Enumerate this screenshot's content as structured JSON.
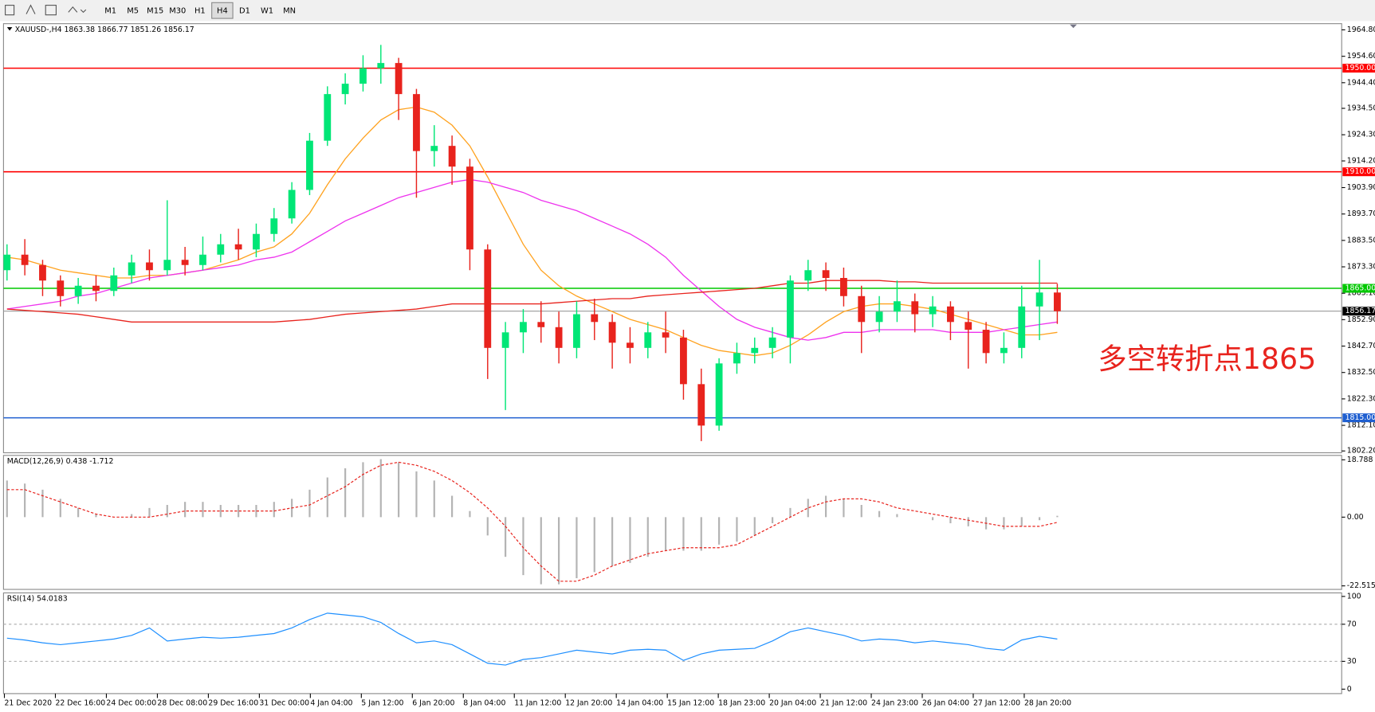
{
  "toolbar": {
    "timeframes": [
      "M1",
      "M5",
      "M15",
      "M30",
      "H1",
      "H4",
      "D1",
      "W1",
      "MN"
    ]
  },
  "chart_data": [
    {
      "type": "candlestick",
      "title": "XAUUSD-,H4 1863.38 1866.77 1851.26 1856.17",
      "up_color": "#00e676",
      "down_color": "#e8231d",
      "open": [
        1872,
        1878,
        1874,
        1868,
        1862,
        1866,
        1864,
        1870,
        1875,
        1872,
        1876,
        1874,
        1878,
        1882,
        1880,
        1886,
        1892,
        1903,
        1922,
        1940,
        1944,
        1950,
        1952,
        1940,
        1918,
        1920,
        1912,
        1880,
        1842,
        1848,
        1852,
        1850,
        1842,
        1855,
        1852,
        1844,
        1842,
        1848,
        1846,
        1828,
        1812,
        1836,
        1840,
        1842,
        1846,
        1868,
        1872,
        1869,
        1862,
        1852,
        1856,
        1860,
        1855,
        1858,
        1852,
        1849,
        1840,
        1842,
        1858,
        1863.38
      ],
      "high": [
        1882,
        1884,
        1876,
        1870,
        1869,
        1870,
        1873,
        1878,
        1880,
        1899,
        1881,
        1885,
        1886,
        1888,
        1890,
        1896,
        1906,
        1925,
        1943,
        1948,
        1955,
        1959,
        1954,
        1942,
        1928,
        1924,
        1915,
        1882,
        1852,
        1857,
        1860,
        1856,
        1860,
        1861,
        1855,
        1850,
        1852,
        1856,
        1849,
        1834,
        1838,
        1844,
        1846,
        1850,
        1870,
        1876,
        1875,
        1873,
        1866,
        1862,
        1868,
        1863,
        1862,
        1860,
        1856,
        1852,
        1848,
        1866,
        1876,
        1866.77
      ],
      "low": [
        1868,
        1870,
        1862,
        1858,
        1859,
        1860,
        1862,
        1867,
        1868,
        1870,
        1870,
        1872,
        1875,
        1876,
        1877,
        1883,
        1890,
        1901,
        1920,
        1936,
        1941,
        1944,
        1930,
        1900,
        1912,
        1905,
        1872,
        1830,
        1818,
        1840,
        1844,
        1836,
        1838,
        1845,
        1834,
        1836,
        1838,
        1840,
        1822,
        1806,
        1810,
        1832,
        1836,
        1838,
        1836,
        1864,
        1864,
        1858,
        1840,
        1848,
        1852,
        1848,
        1850,
        1845,
        1834,
        1836,
        1836,
        1838,
        1845,
        1851.26
      ],
      "close": [
        1878,
        1874,
        1868,
        1862,
        1866,
        1864,
        1870,
        1875,
        1872,
        1876,
        1874,
        1878,
        1882,
        1880,
        1886,
        1892,
        1903,
        1922,
        1940,
        1944,
        1950,
        1952,
        1940,
        1918,
        1920,
        1912,
        1880,
        1842,
        1848,
        1852,
        1850,
        1842,
        1855,
        1852,
        1844,
        1842,
        1848,
        1846,
        1828,
        1812,
        1836,
        1840,
        1842,
        1846,
        1868,
        1872,
        1869,
        1862,
        1852,
        1856,
        1860,
        1855,
        1858,
        1852,
        1849,
        1840,
        1842,
        1858,
        1863.38,
        1856.17
      ],
      "series": [
        {
          "color": "#ffa21f",
          "values": [
            1877,
            1876,
            1874,
            1872,
            1871,
            1870,
            1869,
            1869,
            1870,
            1870,
            1871,
            1872,
            1874,
            1876,
            1879,
            1881,
            1886,
            1894,
            1905,
            1915,
            1923,
            1930,
            1934,
            1935,
            1933,
            1928,
            1920,
            1908,
            1895,
            1882,
            1872,
            1866,
            1862,
            1859,
            1856,
            1853,
            1851,
            1849,
            1846,
            1843,
            1841,
            1840,
            1839,
            1840,
            1843,
            1847,
            1852,
            1856,
            1858,
            1859,
            1859,
            1858,
            1857,
            1855,
            1853,
            1851,
            1849,
            1847,
            1847,
            1848
          ]
        },
        {
          "color": "#ee33ee",
          "values": [
            1857,
            1858,
            1859,
            1860,
            1862,
            1863,
            1865,
            1867,
            1869,
            1870,
            1871,
            1872,
            1873,
            1874,
            1876,
            1877,
            1879,
            1883,
            1887,
            1891,
            1894,
            1897,
            1900,
            1902,
            1904,
            1906,
            1907,
            1906,
            1904,
            1902,
            1899,
            1897,
            1895,
            1892,
            1889,
            1886,
            1882,
            1877,
            1870,
            1864,
            1858,
            1853,
            1850,
            1848,
            1846,
            1845,
            1846,
            1848,
            1848,
            1849,
            1849,
            1849,
            1849,
            1848,
            1848,
            1848,
            1849,
            1850,
            1851,
            1852
          ]
        },
        {
          "color": "#e8231d",
          "values": [
            1857,
            1856.5,
            1856,
            1855.5,
            1855,
            1854,
            1853,
            1852,
            1852,
            1852,
            1852,
            1852,
            1852,
            1852,
            1852,
            1852,
            1852.5,
            1853,
            1854,
            1855,
            1855.5,
            1856,
            1856.5,
            1857,
            1858,
            1859,
            1859,
            1859,
            1859,
            1859,
            1859,
            1859.5,
            1860,
            1860.5,
            1861,
            1861,
            1862,
            1862.5,
            1863,
            1863.5,
            1864,
            1864.5,
            1865,
            1866,
            1867,
            1867,
            1868,
            1868,
            1868,
            1868,
            1867.5,
            1867.5,
            1867,
            1867,
            1867,
            1867,
            1867,
            1867,
            1867,
            1867
          ]
        }
      ],
      "ylim": [
        1801.5,
        1967.2
      ],
      "yticks": [
        {
          "value": 1964.8,
          "label": "1964.80"
        },
        {
          "value": 1954.6,
          "label": "1954.60"
        },
        {
          "value": 1944.4,
          "label": "1944.40"
        },
        {
          "value": 1934.5,
          "label": "1934.50"
        },
        {
          "value": 1924.3,
          "label": "1924.30"
        },
        {
          "value": 1914.2,
          "label": "1914.20"
        },
        {
          "value": 1903.9,
          "label": "1903.90"
        },
        {
          "value": 1893.7,
          "label": "1893.70"
        },
        {
          "value": 1883.5,
          "label": "1883.50"
        },
        {
          "value": 1873.3,
          "label": "1873.30"
        },
        {
          "value": 1863.1,
          "label": "1863.10"
        },
        {
          "value": 1852.9,
          "label": "1852.90"
        },
        {
          "value": 1842.7,
          "label": "1842.70"
        },
        {
          "value": 1832.5,
          "label": "1832.50"
        },
        {
          "value": 1822.3,
          "label": "1822.30"
        },
        {
          "value": 1812.1,
          "label": "1812.10"
        },
        {
          "value": 1802.2,
          "label": "1802.20"
        }
      ],
      "levels": [
        {
          "value": 1950,
          "label": "1950.00",
          "color": "#ff0000"
        },
        {
          "value": 1910,
          "label": "1910.00",
          "color": "#ff0000"
        },
        {
          "value": 1865,
          "label": "1865.00",
          "color": "#00c800"
        },
        {
          "value": 1815,
          "label": "1815.00",
          "color": "#1f5fd0"
        }
      ],
      "current_price": 1856.17,
      "annotation": "多空转折点1865",
      "xlabels": [
        "21 Dec 2020",
        "22 Dec 16:00",
        "24 Dec 00:00",
        "28 Dec 08:00",
        "29 Dec 16:00",
        "31 Dec 00:00",
        "4 Jan 04:00",
        "5 Jan 12:00",
        "6 Jan 20:00",
        "8 Jan 04:00",
        "11 Jan 12:00",
        "12 Jan 20:00",
        "14 Jan 04:00",
        "15 Jan 12:00",
        "18 Jan 23:00",
        "20 Jan 04:00",
        "21 Jan 12:00",
        "24 Jan 23:00",
        "26 Jan 04:00",
        "27 Jan 12:00",
        "28 Jan 20:00"
      ]
    },
    {
      "type": "macd",
      "title": "MACD(12,26,9) 0.438 -1.712",
      "histogram": {
        "color": "#b4b4b4",
        "values": [
          12,
          11,
          9,
          6,
          3,
          1,
          0,
          1,
          3,
          4,
          5,
          5,
          4,
          4,
          4,
          5,
          6,
          9,
          13,
          16,
          18,
          19,
          18,
          15,
          12,
          7,
          2,
          -6,
          -13,
          -19,
          -22,
          -22,
          -20,
          -18,
          -16,
          -15,
          -13,
          -11,
          -11,
          -11,
          -9,
          -8,
          -6,
          -2,
          3,
          6,
          7,
          6,
          4,
          2,
          1,
          0,
          -1,
          -2,
          -3,
          -4,
          -4,
          -3,
          -1,
          0.438
        ]
      },
      "signal": {
        "color": "#e8231d",
        "values": [
          9,
          9,
          7,
          5,
          3,
          1,
          0,
          0,
          0,
          1,
          2,
          2,
          2,
          2,
          2,
          2,
          3,
          4,
          7,
          10,
          14,
          17,
          18,
          17,
          15,
          12,
          8,
          3,
          -3,
          -10,
          -16,
          -21,
          -21,
          -19,
          -16,
          -14,
          -12,
          -11,
          -10,
          -10,
          -10,
          -9,
          -6,
          -3,
          0,
          3,
          5,
          6,
          6,
          5,
          3,
          2,
          1,
          0,
          -1,
          -2,
          -3,
          -3,
          -3,
          -1.712
        ]
      },
      "ylim": [
        -23.67,
        20.23
      ],
      "yticks": [
        18.788,
        {
          "value": 0,
          "label": "0.00"
        },
        -22.515
      ]
    },
    {
      "type": "line",
      "title": "RSI(14) 54.0183",
      "color": "#1e8fff",
      "values": [
        55,
        53,
        50,
        48,
        50,
        52,
        54,
        58,
        66,
        52,
        54,
        56,
        55,
        56,
        58,
        60,
        66,
        75,
        82,
        80,
        78,
        72,
        60,
        50,
        52,
        48,
        38,
        28,
        26,
        32,
        34,
        38,
        42,
        40,
        38,
        42,
        43,
        42,
        31,
        38,
        42,
        43,
        44,
        52,
        62,
        66,
        62,
        58,
        52,
        54,
        53,
        50,
        52,
        50,
        48,
        44,
        42,
        53,
        57,
        54.0183
      ],
      "ylim": [
        -4.8,
        103.8
      ],
      "yticks": [
        100,
        70,
        30,
        0
      ],
      "levels": [
        70,
        30
      ]
    }
  ]
}
